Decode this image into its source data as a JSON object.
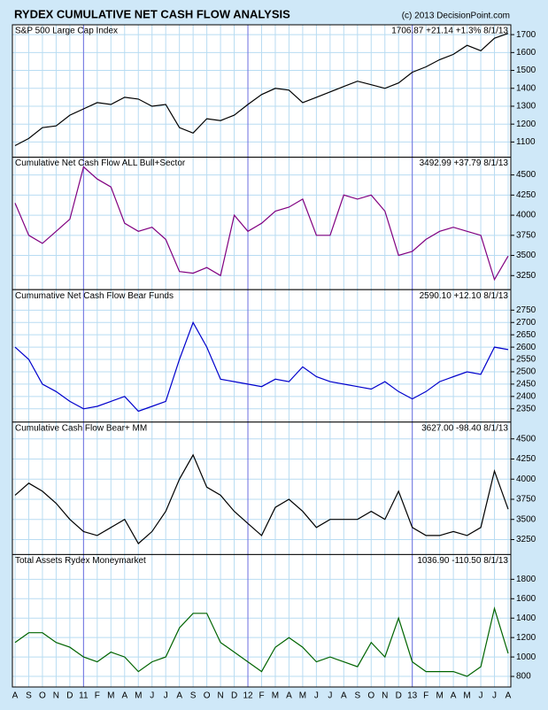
{
  "title": "RYDEX CUMULATIVE NET CASH FLOW ANALYSIS",
  "source": "(c) 2013 DecisionPoint.com",
  "chart_data": [
    {
      "type": "line",
      "title": "S&P 500 Large Cap Index",
      "annotation": "1706.87 +21.14 +1.3% 8/1/13",
      "color": "#000000",
      "values": [
        1080,
        1120,
        1180,
        1190,
        1250,
        1285,
        1320,
        1310,
        1350,
        1340,
        1300,
        1310,
        1180,
        1150,
        1230,
        1220,
        1250,
        1310,
        1365,
        1400,
        1390,
        1320,
        1350,
        1380,
        1410,
        1440,
        1420,
        1400,
        1430,
        1490,
        1520,
        1560,
        1590,
        1640,
        1610,
        1680,
        1707
      ],
      "ylim": [
        1015,
        1755
      ],
      "yticks": [
        1100,
        1200,
        1300,
        1400,
        1500,
        1600,
        1700
      ],
      "grid": true
    },
    {
      "type": "line",
      "title": "Cumulative Net Cash Flow ALL Bull+Sector",
      "annotation": "3492.99 +37.79 8/1/13",
      "color": "#800080",
      "values": [
        4150,
        3750,
        3650,
        3800,
        3950,
        4600,
        4450,
        4350,
        3900,
        3800,
        3850,
        3700,
        3300,
        3280,
        3350,
        3250,
        4000,
        3800,
        3900,
        4050,
        4100,
        4200,
        3750,
        3750,
        4250,
        4200,
        4250,
        4050,
        3500,
        3550,
        3700,
        3800,
        3850,
        3800,
        3750,
        3200,
        3493
      ],
      "ylim": [
        3075,
        4720
      ],
      "yticks": [
        3250,
        3500,
        3750,
        4000,
        4250,
        4500
      ],
      "grid": true
    },
    {
      "type": "line",
      "title": "Cumumative Net Cash Flow Bear Funds",
      "annotation": "2590.10 +12.10 8/1/13",
      "color": "#0000cc",
      "values": [
        2600,
        2550,
        2450,
        2420,
        2380,
        2350,
        2360,
        2380,
        2400,
        2340,
        2360,
        2380,
        2550,
        2700,
        2600,
        2470,
        2460,
        2450,
        2440,
        2470,
        2460,
        2520,
        2480,
        2460,
        2450,
        2440,
        2430,
        2460,
        2420,
        2390,
        2420,
        2460,
        2480,
        2500,
        2490,
        2600,
        2590
      ],
      "ylim": [
        2296,
        2833
      ],
      "yticks": [
        2350,
        2400,
        2450,
        2500,
        2550,
        2600,
        2650,
        2700,
        2750
      ],
      "grid": true
    },
    {
      "type": "line",
      "title": "Cumulative Cash Flow Bear+ MM",
      "annotation": "3627.00 -98.40 8/1/13",
      "color": "#000000",
      "values": [
        3800,
        3950,
        3850,
        3700,
        3500,
        3350,
        3300,
        3400,
        3500,
        3200,
        3350,
        3600,
        4000,
        4300,
        3900,
        3800,
        3600,
        3450,
        3300,
        3650,
        3750,
        3600,
        3400,
        3500,
        3500,
        3500,
        3600,
        3500,
        3850,
        3400,
        3300,
        3300,
        3350,
        3300,
        3400,
        4100,
        3627
      ],
      "ylim": [
        3064,
        4708
      ],
      "yticks": [
        3250,
        3500,
        3750,
        4000,
        4250,
        4500
      ],
      "grid": true
    },
    {
      "type": "line",
      "title": "Total Assets Rydex Moneymarket",
      "annotation": "1036.90 -110.50 8/1/13",
      "color": "#006400",
      "values": [
        1150,
        1250,
        1250,
        1150,
        1100,
        1000,
        950,
        1050,
        1000,
        850,
        950,
        1000,
        1300,
        1450,
        1450,
        1150,
        1050,
        950,
        850,
        1100,
        1200,
        1100,
        950,
        1000,
        950,
        900,
        1150,
        1000,
        1400,
        950,
        850,
        850,
        850,
        800,
        900,
        1500,
        1037
      ],
      "ylim": [
        691,
        2055
      ],
      "yticks": [
        800,
        1000,
        1200,
        1400,
        1600,
        1800
      ],
      "grid": true,
      "categories": [
        "A",
        "S",
        "O",
        "N",
        "D",
        "11",
        "F",
        "M",
        "A",
        "M",
        "J",
        "J",
        "A",
        "S",
        "O",
        "N",
        "D",
        "12",
        "F",
        "M",
        "A",
        "M",
        "J",
        "J",
        "A",
        "S",
        "O",
        "N",
        "D",
        "13",
        "F",
        "M",
        "A",
        "M",
        "J",
        "J",
        "A"
      ]
    }
  ]
}
